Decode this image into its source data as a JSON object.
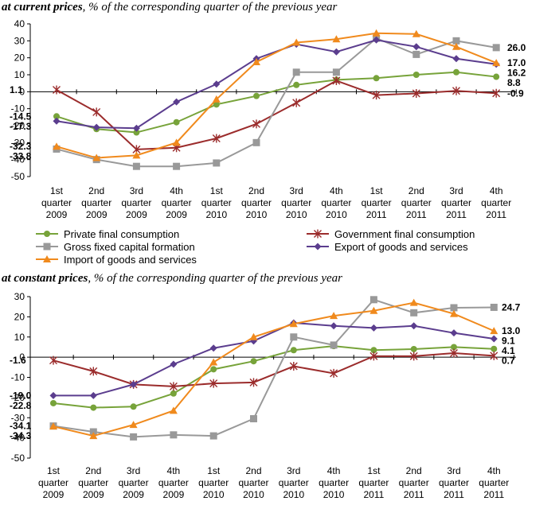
{
  "titles": {
    "t1_bold": "at current prices",
    "t1_rest": ", % of the corresponding quarter of the previous year",
    "t2_bold": "at constant prices",
    "t2_rest": ", % of the corresponding quarter of the previous year"
  },
  "chart_data": [
    {
      "type": "line",
      "categories": [
        "1st quarter 2009",
        "2nd quarter 2009",
        "3rd quarter 2009",
        "4th quarter 2009",
        "1st quarter 2010",
        "2nd quarter 2010",
        "3rd quarter 2010",
        "4th quarter 2010",
        "1st quarter 2011",
        "2nd quarter 2011",
        "3rd quarter 2011",
        "4th quarter 2011"
      ],
      "ylim": [
        -50,
        40
      ],
      "yticks": [
        40,
        30,
        20,
        10,
        0,
        -10,
        -20,
        -30,
        -40,
        -50
      ],
      "grid": false,
      "legend": "bottom",
      "series": [
        {
          "name": "Private final consumption",
          "color": "#77a33a",
          "marker": "circle",
          "values": [
            -14.5,
            -22,
            -24,
            -18,
            -7.5,
            -2.5,
            4,
            7,
            8,
            10,
            11.5,
            8.8
          ]
        },
        {
          "name": "Government final consumption",
          "color": "#9b2c2c",
          "marker": "star",
          "values": [
            1.1,
            -12,
            -34,
            -33,
            -27.5,
            -19,
            -6.5,
            6.5,
            -2,
            -1,
            0.5,
            -0.9
          ]
        },
        {
          "name": "Gross fixed capital formation",
          "color": "#999999",
          "marker": "square",
          "values": [
            -33.8,
            -40,
            -44,
            -44,
            -42,
            -30,
            11.5,
            11.5,
            31.5,
            22,
            30,
            26.0
          ]
        },
        {
          "name": "Export of goods and services",
          "color": "#5b3d8e",
          "marker": "diamond",
          "values": [
            -17.3,
            -21,
            -21.5,
            -6,
            4.5,
            19.5,
            28,
            23.5,
            30.5,
            26.5,
            19.5,
            16.2
          ]
        },
        {
          "name": "Import of goods and services",
          "color": "#f08a1d",
          "marker": "triangle",
          "values": [
            -32.3,
            -39,
            -37.5,
            -30,
            -4.5,
            17.5,
            29,
            31,
            34.5,
            34,
            26.5,
            17.0
          ]
        }
      ],
      "labels": [
        {
          "text": "1.1",
          "value": 1.1,
          "side": "left"
        },
        {
          "text": "-14.5",
          "value": -14.5,
          "side": "left"
        },
        {
          "text": "-17.3",
          "value": -17.3,
          "side": "left"
        },
        {
          "text": "-32.3",
          "value": -32.3,
          "side": "left"
        },
        {
          "text": "-33.8",
          "value": -33.8,
          "side": "left"
        },
        {
          "text": "26.0",
          "value": 26.0,
          "side": "right"
        },
        {
          "text": "17.0",
          "value": 17.0,
          "side": "right"
        },
        {
          "text": "16.2",
          "value": 16.2,
          "side": "right"
        },
        {
          "text": "8.8",
          "value": 8.8,
          "side": "right"
        },
        {
          "text": "-0.9",
          "value": -0.9,
          "side": "right"
        }
      ]
    },
    {
      "type": "line",
      "categories": [
        "1st quarter 2009",
        "2nd quarter 2009",
        "3rd quarter 2009",
        "4th quarter 2009",
        "1st quarter 2010",
        "2nd quarter 2010",
        "3rd quarter 2010",
        "4th quarter 2010",
        "1st quarter 2011",
        "2nd quarter 2011",
        "3rd quarter 2011",
        "4th quarter 2011"
      ],
      "ylim": [
        -50,
        30
      ],
      "yticks": [
        30,
        20,
        10,
        0,
        -10,
        -20,
        -30,
        -40,
        -50
      ],
      "grid": false,
      "legend": "none",
      "series": [
        {
          "name": "Private final consumption",
          "color": "#77a33a",
          "marker": "circle",
          "values": [
            -22.8,
            -25,
            -24.5,
            -18,
            -6,
            -2,
            3.5,
            5.5,
            3.5,
            4,
            5,
            4.1
          ]
        },
        {
          "name": "Government final consumption",
          "color": "#9b2c2c",
          "marker": "star",
          "values": [
            -1.6,
            -7,
            -13.5,
            -14.5,
            -13,
            -12.5,
            -4.5,
            -8,
            0.5,
            0.5,
            2,
            0.7
          ]
        },
        {
          "name": "Gross fixed capital formation",
          "color": "#999999",
          "marker": "square",
          "values": [
            -34.1,
            -37,
            -39.5,
            -38.5,
            -39,
            -30.5,
            10,
            6,
            28.5,
            22,
            24.5,
            24.7
          ]
        },
        {
          "name": "Export of goods and services",
          "color": "#5b3d8e",
          "marker": "diamond",
          "values": [
            -19.0,
            -19,
            -13.5,
            -3.5,
            4.5,
            8,
            17,
            15.5,
            14.5,
            15.5,
            12,
            9.1
          ]
        },
        {
          "name": "Import of goods and services",
          "color": "#f08a1d",
          "marker": "triangle",
          "values": [
            -34.3,
            -39,
            -33.5,
            -26.5,
            -2.5,
            10,
            16.5,
            20.5,
            23,
            27,
            21.5,
            13.0
          ]
        }
      ],
      "labels": [
        {
          "text": "-1.6",
          "value": -1.6,
          "side": "left"
        },
        {
          "text": "-19.0",
          "value": -19.0,
          "side": "left"
        },
        {
          "text": "-22.8",
          "value": -22.8,
          "side": "left"
        },
        {
          "text": "-34.3",
          "value": -34.3,
          "side": "left"
        },
        {
          "text": "-34.1",
          "value": -34.1,
          "side": "left"
        },
        {
          "text": "24.7",
          "value": 24.7,
          "side": "right"
        },
        {
          "text": "13.0",
          "value": 13.0,
          "side": "right"
        },
        {
          "text": "9.1",
          "value": 9.1,
          "side": "right"
        },
        {
          "text": "4.1",
          "value": 4.1,
          "side": "right"
        },
        {
          "text": "0.7",
          "value": 0.7,
          "side": "right"
        }
      ]
    }
  ],
  "legend": {
    "items": [
      "Private final consumption",
      "Government final consumption",
      "Gross fixed capital formation",
      "Export of goods and services",
      "Import of goods and services"
    ]
  }
}
